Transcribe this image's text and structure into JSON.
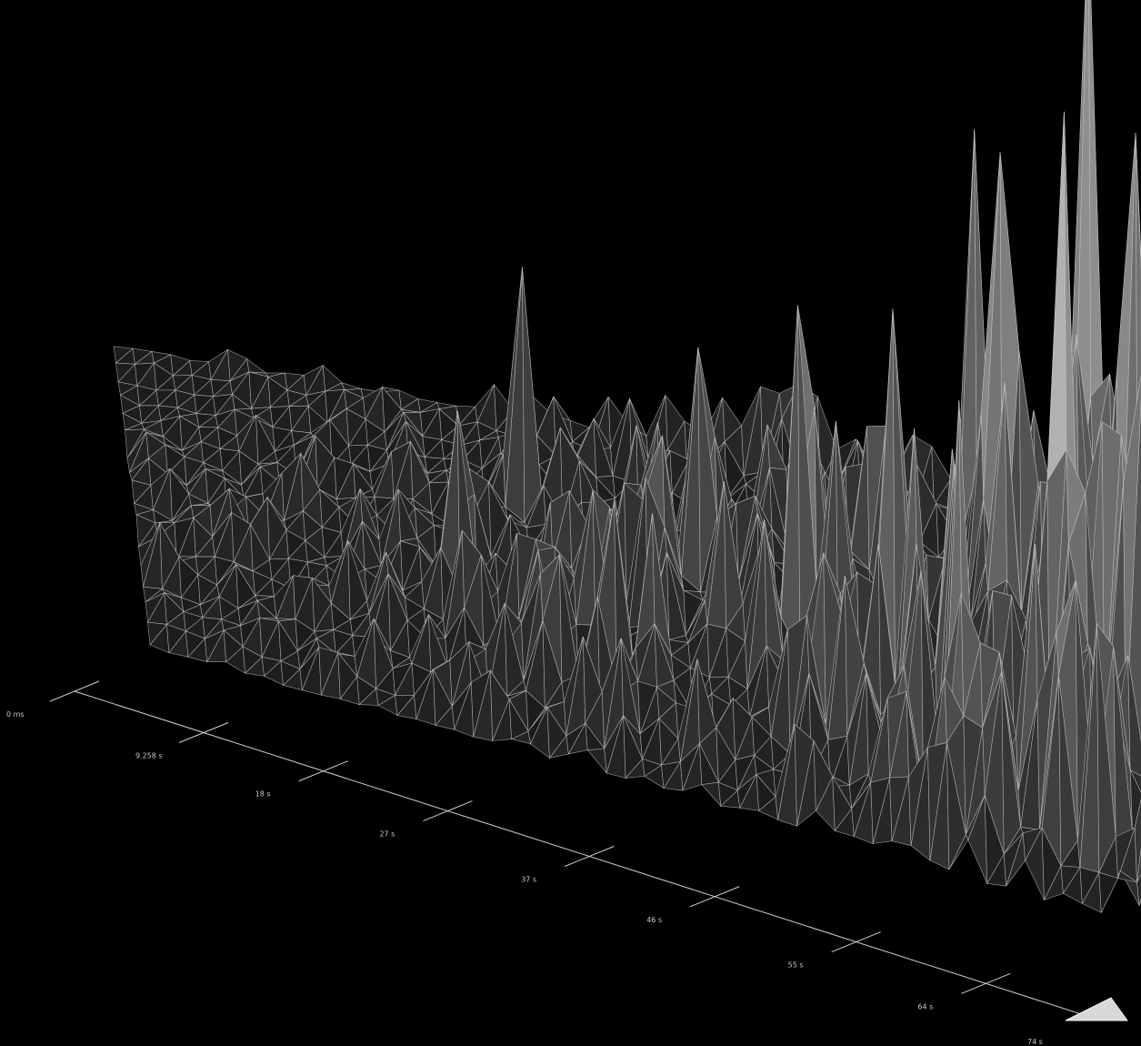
{
  "chart_data": {
    "type": "surface",
    "style": "3D wireframe terrain, grayscale faces with light edges on black background",
    "time_axis": {
      "tick_labels": [
        "0 ms",
        "9.258 s",
        "18 s",
        "27 s",
        "37 s",
        "46 s",
        "55 s",
        "64 s",
        "74 s"
      ],
      "range_seconds": [
        0,
        74
      ]
    },
    "series": [
      {
        "values_by_time": [
          0.05,
          0.1,
          0.15,
          0.25,
          0.35,
          0.42,
          0.55,
          0.75,
          1.0
        ]
      }
    ],
    "colors": {
      "background": "#000000",
      "edges": "#c8c8c8",
      "low_face": "#222222",
      "high_face": "#e8e8e8",
      "axis": "#d0d0d0"
    }
  }
}
